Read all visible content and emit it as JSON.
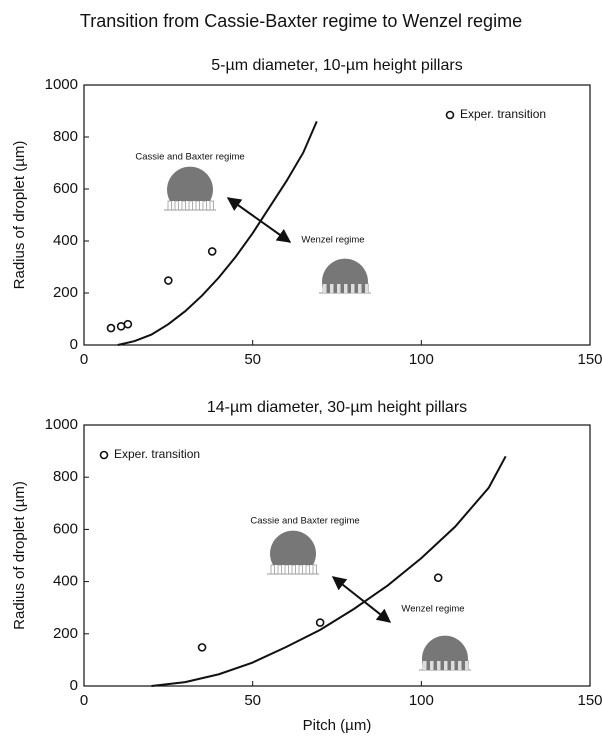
{
  "title": "Transition from Cassie-Baxter regime to Wenzel regime",
  "chart_data": [
    {
      "type": "scatter",
      "title": "5-µm diameter, 10-µm height pillars",
      "ylabel": "Radius of droplet (µm)",
      "xlim": [
        0,
        150
      ],
      "xticks": [
        0,
        50,
        100,
        150
      ],
      "ylim": [
        0,
        1000
      ],
      "yticks": [
        0,
        200,
        400,
        600,
        800,
        1000
      ],
      "legend": "upper right",
      "annotations": [
        "Cassie and Baxter regime",
        "Wenzel regime"
      ],
      "series": [
        {
          "name": "Exper. transition",
          "color": "#111111",
          "x": [
            8,
            11,
            13,
            25,
            38
          ],
          "values": [
            65,
            72,
            80,
            248,
            360
          ]
        },
        {
          "type": "line",
          "color": "#111111",
          "x": [
            10,
            15,
            20,
            25,
            30,
            35,
            40,
            45,
            50,
            55,
            60,
            65,
            69
          ],
          "values": [
            0,
            15,
            40,
            80,
            130,
            190,
            260,
            340,
            430,
            530,
            630,
            740,
            860
          ]
        }
      ]
    },
    {
      "type": "scatter",
      "title": "14-µm diameter, 30-µm height pillars",
      "xlabel": "Pitch (µm)",
      "ylabel": "Radius of droplet (µm)",
      "xlim": [
        0,
        150
      ],
      "xticks": [
        0,
        50,
        100,
        150
      ],
      "ylim": [
        0,
        1000
      ],
      "yticks": [
        0,
        200,
        400,
        600,
        800,
        1000
      ],
      "legend": "upper left",
      "annotations": [
        "Cassie and Baxter regime",
        "Wenzel regime"
      ],
      "series": [
        {
          "name": "Exper. transition",
          "color": "#111111",
          "x": [
            35,
            70,
            105
          ],
          "values": [
            148,
            243,
            415
          ]
        },
        {
          "type": "line",
          "color": "#111111",
          "x": [
            20,
            30,
            40,
            50,
            60,
            70,
            80,
            90,
            100,
            110,
            120,
            125
          ],
          "values": [
            0,
            15,
            45,
            90,
            150,
            215,
            295,
            385,
            490,
            610,
            760,
            880
          ]
        }
      ]
    }
  ]
}
